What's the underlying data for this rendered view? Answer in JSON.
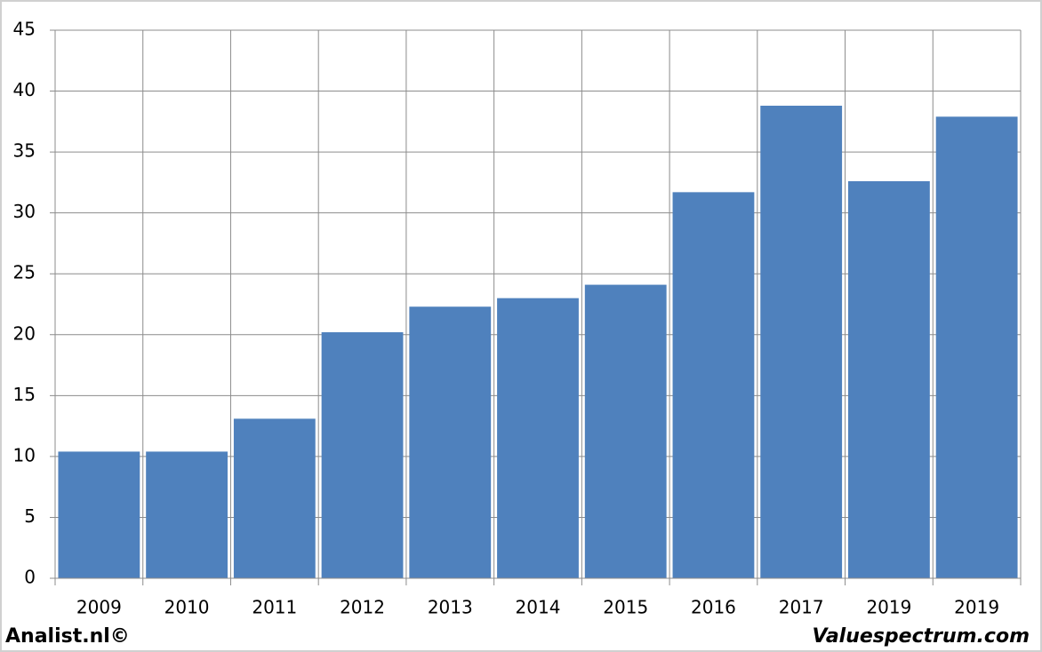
{
  "chart_data": {
    "type": "bar",
    "categories": [
      "2009",
      "2010",
      "2011",
      "2012",
      "2013",
      "2014",
      "2015",
      "2016",
      "2017",
      "2019",
      "2019"
    ],
    "values": [
      10.4,
      10.4,
      13.1,
      20.2,
      22.3,
      23.0,
      24.1,
      31.7,
      38.8,
      32.6,
      37.9
    ],
    "color": "#4f81bd",
    "ylim": [
      0,
      45
    ],
    "yticks": [
      0,
      5,
      10,
      15,
      20,
      25,
      30,
      35,
      40,
      45
    ],
    "grid": true,
    "annotations": [
      "Analist.nl©",
      "Valuespectrum.com"
    ]
  }
}
